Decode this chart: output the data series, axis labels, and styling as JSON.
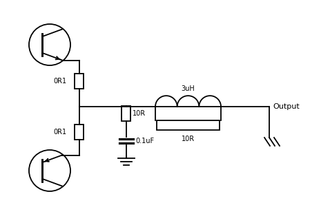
{
  "bg_color": "#ffffff",
  "line_color": "#000000",
  "fig_width": 4.78,
  "fig_height": 3.14,
  "dpi": 100,
  "labels": {
    "0R1_top": "0R1",
    "0R1_bot": "0R1",
    "10R_shunt": "10R",
    "3uH": "3uH",
    "10R_par": "10R",
    "cap": "0.1uF",
    "output": "Output"
  }
}
